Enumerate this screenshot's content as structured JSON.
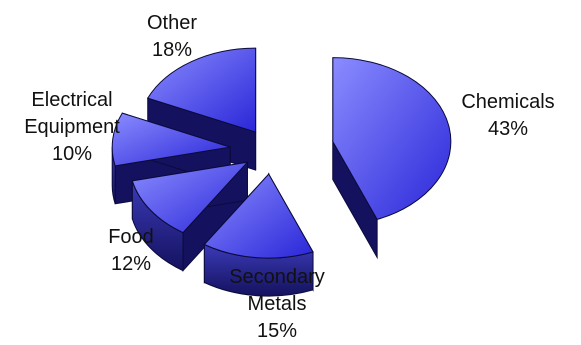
{
  "chart_data": {
    "type": "pie",
    "style": "3d-exploded",
    "categories": [
      "Chemicals",
      "Secondary Metals",
      "Food",
      "Electrical Equipment",
      "Other"
    ],
    "values": [
      43,
      15,
      12,
      10,
      18
    ],
    "labels": [
      {
        "name_lines": [
          "Chemicals"
        ],
        "pct": "43%"
      },
      {
        "name_lines": [
          "Secondary",
          "Metals"
        ],
        "pct": "15%"
      },
      {
        "name_lines": [
          "Food"
        ],
        "pct": "12%"
      },
      {
        "name_lines": [
          "Electrical",
          "Equipment"
        ],
        "pct": "10%"
      },
      {
        "name_lines": [
          "Other"
        ],
        "pct": "18%"
      }
    ],
    "colors": {
      "top_light": "#8a8cff",
      "top_dark": "#2a26d8",
      "side_light": "#3b3ab8",
      "side_dark": "#14125e",
      "edge": "#0b0a3a"
    }
  }
}
